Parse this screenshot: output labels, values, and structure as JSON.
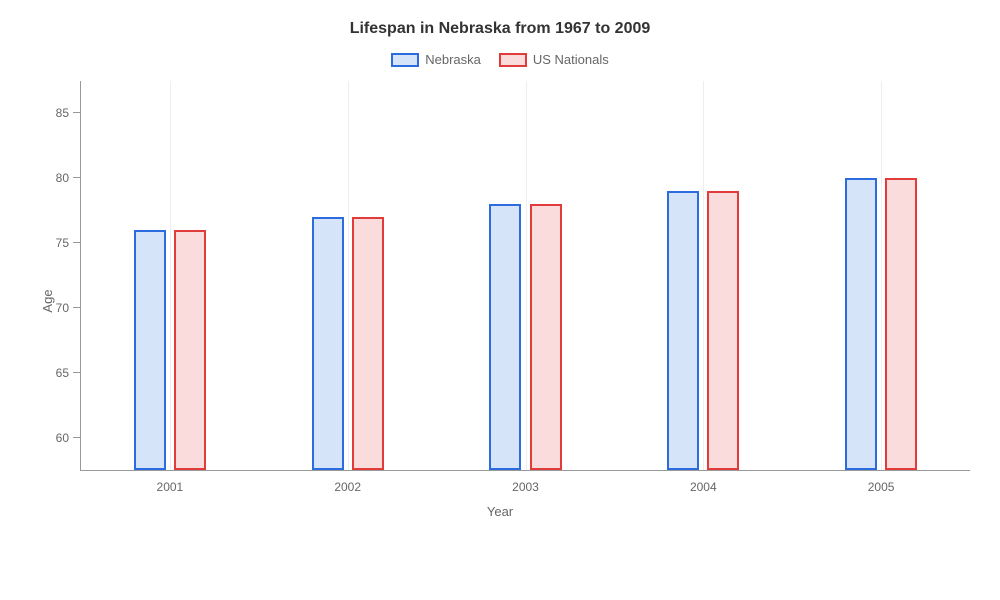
{
  "chart": {
    "type": "bar",
    "title": "Lifespan in Nebraska from 1967 to 2009",
    "title_fontsize": 16,
    "title_color": "#333333",
    "background_color": "#ffffff",
    "x_axis": {
      "label": "Year",
      "categories": [
        "2001",
        "2002",
        "2003",
        "2004",
        "2005"
      ],
      "tick_color": "#666666",
      "tick_fontsize": 12,
      "label_fontsize": 13
    },
    "y_axis": {
      "label": "Age",
      "ymin": 57.5,
      "ymax": 87.5,
      "ticks": [
        60,
        65,
        70,
        75,
        80,
        85
      ],
      "tick_color": "#666666",
      "tick_fontsize": 12,
      "label_fontsize": 13
    },
    "series": [
      {
        "name": "Nebraska",
        "values": [
          76,
          77,
          78,
          79,
          80
        ],
        "fill_color": "#d6e4fa",
        "border_color": "#2d6cdf",
        "border_width": 2
      },
      {
        "name": "US Nationals",
        "values": [
          76,
          77,
          78,
          79,
          80
        ],
        "fill_color": "#fbdcdc",
        "border_color": "#e23b3b",
        "border_width": 2
      }
    ],
    "legend": {
      "position": "top-center",
      "swatch_width": 28,
      "swatch_height": 14,
      "fontsize": 13,
      "text_color": "#666666"
    },
    "grid": {
      "vertical_color": "#eeeeee",
      "axis_line_color": "#999999"
    },
    "bar_layout": {
      "group_gap_pct": 3.6,
      "bar_gap_pct": 0.9,
      "bar_width_pct": 3.6
    }
  }
}
